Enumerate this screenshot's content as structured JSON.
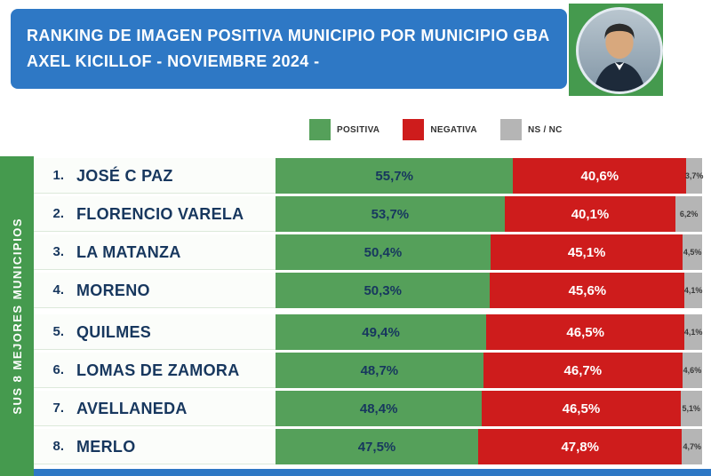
{
  "banner": {
    "title_line1": "RANKING DE IMAGEN POSITIVA MUNICIPIO POR MUNICIPIO GBA",
    "title_line2": "AXEL KICILLOF - NOVIEMBRE 2024 -"
  },
  "legend": [
    {
      "label": "POSITIVA",
      "color": "#55a05a"
    },
    {
      "label": "NEGATIVA",
      "color": "#ce1c1c"
    },
    {
      "label": "NS / NC",
      "color": "#b5b5b5"
    }
  ],
  "sidebar": {
    "label": "SUS 8 MEJORES MUNICIPIOS"
  },
  "colors": {
    "banner_blue": "#2e78c5",
    "positiva_green": "#55a05a",
    "negativa_red": "#ce1c1c",
    "nsnc_gray": "#b5b5b5",
    "text_navy": "#17375e",
    "sidebar_green": "#459a4e"
  },
  "rows": [
    {
      "rank": "1.",
      "name": "JOSÉ C PAZ",
      "positiva": "55,7%",
      "negativa": "40,6%",
      "nsnc": "3,7%",
      "pos": 55.7,
      "neg": 40.6,
      "ns": 3.7
    },
    {
      "rank": "2.",
      "name": "FLORENCIO VARELA",
      "positiva": "53,7%",
      "negativa": "40,1%",
      "nsnc": "6,2%",
      "pos": 53.7,
      "neg": 40.1,
      "ns": 6.2
    },
    {
      "rank": "3.",
      "name": "LA MATANZA",
      "positiva": "50,4%",
      "negativa": "45,1%",
      "nsnc": "4,5%",
      "pos": 50.4,
      "neg": 45.1,
      "ns": 4.5
    },
    {
      "rank": "4.",
      "name": "MORENO",
      "positiva": "50,3%",
      "negativa": "45,6%",
      "nsnc": "4,1%",
      "pos": 50.3,
      "neg": 45.6,
      "ns": 4.1
    },
    {
      "rank": "5.",
      "name": "QUILMES",
      "positiva": "49,4%",
      "negativa": "46,5%",
      "nsnc": "4,1%",
      "pos": 49.4,
      "neg": 46.5,
      "ns": 4.1
    },
    {
      "rank": "6.",
      "name": "LOMAS DE ZAMORA",
      "positiva": "48,7%",
      "negativa": "46,7%",
      "nsnc": "4,6%",
      "pos": 48.7,
      "neg": 46.7,
      "ns": 4.6
    },
    {
      "rank": "7.",
      "name": "AVELLANEDA",
      "positiva": "48,4%",
      "negativa": "46,5%",
      "nsnc": "5,1%",
      "pos": 48.4,
      "neg": 46.5,
      "ns": 5.1
    },
    {
      "rank": "8.",
      "name": "MERLO",
      "positiva": "47,5%",
      "negativa": "47,8%",
      "nsnc": "4,7%",
      "pos": 47.5,
      "neg": 47.8,
      "ns": 4.7
    }
  ],
  "chart_data": {
    "type": "bar",
    "stacked": true,
    "orientation": "horizontal",
    "title": "RANKING DE IMAGEN POSITIVA MUNICIPIO POR MUNICIPIO GBA - AXEL KICILLOF - NOVIEMBRE 2024",
    "categories": [
      "JOSÉ C PAZ",
      "FLORENCIO VARELA",
      "LA MATANZA",
      "MORENO",
      "QUILMES",
      "LOMAS DE ZAMORA",
      "AVELLANEDA",
      "MERLO"
    ],
    "series": [
      {
        "name": "POSITIVA",
        "color": "#55a05a",
        "values": [
          55.7,
          53.7,
          50.4,
          50.3,
          49.4,
          48.7,
          48.4,
          47.5
        ]
      },
      {
        "name": "NEGATIVA",
        "color": "#ce1c1c",
        "values": [
          40.6,
          40.1,
          45.1,
          45.6,
          46.5,
          46.7,
          46.5,
          47.8
        ]
      },
      {
        "name": "NS / NC",
        "color": "#b5b5b5",
        "values": [
          3.7,
          6.2,
          4.5,
          4.1,
          4.1,
          4.6,
          5.1,
          4.7
        ]
      }
    ],
    "xlim": [
      0,
      100
    ],
    "legend_position": "top",
    "grid": false
  }
}
